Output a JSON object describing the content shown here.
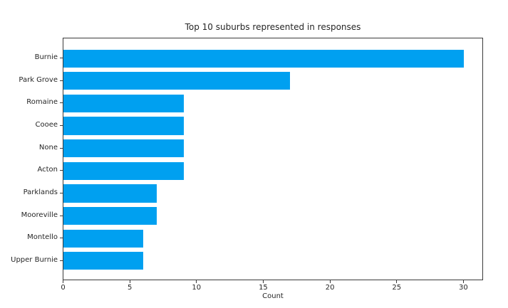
{
  "chart_data": {
    "type": "bar",
    "orientation": "horizontal",
    "title": "Top 10 suburbs represented in responses",
    "xlabel": "Count",
    "ylabel": "",
    "categories": [
      "Burnie",
      "Park Grove",
      "Romaine",
      "Cooee",
      "None",
      "Acton",
      "Parklands",
      "Mooreville",
      "Montello",
      "Upper Burnie"
    ],
    "values": [
      30,
      17,
      9,
      9,
      9,
      9,
      7,
      7,
      6,
      6
    ],
    "xticks": [
      0,
      5,
      10,
      15,
      20,
      25,
      30
    ],
    "xlim": [
      0,
      31.5
    ],
    "grid": false,
    "legend": false,
    "bar_color": "#00A0F0",
    "axis_color": "#3a3a3a",
    "text_color": "#262626",
    "background": "#ffffff"
  }
}
